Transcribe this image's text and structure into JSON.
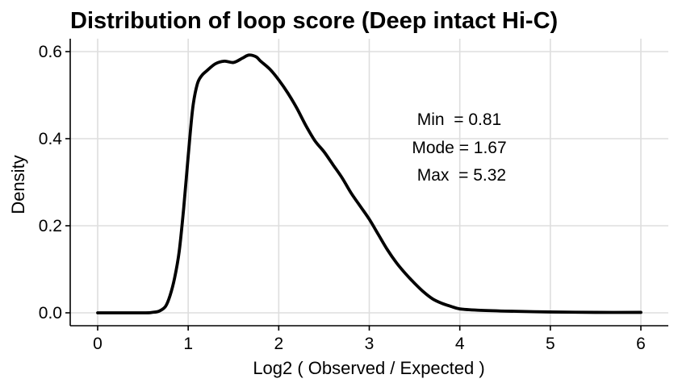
{
  "chart_data": {
    "type": "line",
    "title": "Distribution of loop score (Deep intact Hi-C)",
    "xlabel": "Log2 ( Observed / Expected )",
    "ylabel": "Density",
    "xlim": [
      0,
      6
    ],
    "ylim": [
      0,
      0.6
    ],
    "xticks": [
      0,
      1,
      2,
      3,
      4,
      5,
      6
    ],
    "xtick_labels": [
      "0",
      "1",
      "2",
      "3",
      "4",
      "5",
      "6"
    ],
    "yticks": [
      0.0,
      0.2,
      0.4,
      0.6
    ],
    "ytick_labels": [
      "0.0",
      "0.2",
      "0.4",
      "0.6"
    ],
    "grid": true,
    "legend": "none",
    "annotations": [
      "Min  = 0.81",
      "Mode = 1.67",
      " Max  = 5.32"
    ],
    "line_color": "#000000",
    "series": [
      {
        "x": [
          0.0,
          0.5,
          0.6,
          0.68,
          0.75,
          0.8,
          0.85,
          0.9,
          0.95,
          1.0,
          1.05,
          1.1,
          1.15,
          1.2,
          1.3,
          1.4,
          1.5,
          1.6,
          1.67,
          1.75,
          1.8,
          1.9,
          2.0,
          2.1,
          2.2,
          2.3,
          2.4,
          2.5,
          2.6,
          2.7,
          2.8,
          2.9,
          3.0,
          3.1,
          3.2,
          3.3,
          3.4,
          3.5,
          3.6,
          3.7,
          3.8,
          3.9,
          4.0,
          4.2,
          4.5,
          5.0,
          5.5,
          6.0
        ],
        "y": [
          0.0,
          0.0,
          0.001,
          0.004,
          0.015,
          0.04,
          0.08,
          0.14,
          0.24,
          0.36,
          0.47,
          0.525,
          0.545,
          0.555,
          0.572,
          0.578,
          0.575,
          0.585,
          0.592,
          0.588,
          0.578,
          0.56,
          0.535,
          0.505,
          0.47,
          0.43,
          0.395,
          0.37,
          0.34,
          0.31,
          0.275,
          0.245,
          0.215,
          0.18,
          0.145,
          0.115,
          0.09,
          0.068,
          0.048,
          0.032,
          0.022,
          0.015,
          0.009,
          0.006,
          0.004,
          0.002,
          0.001,
          0.001
        ]
      }
    ]
  }
}
